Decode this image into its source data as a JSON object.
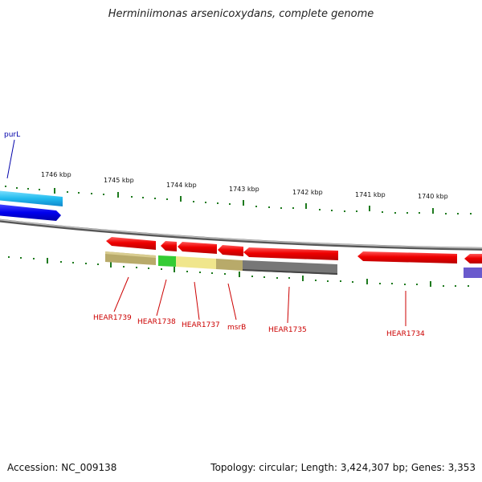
{
  "title": "Herminiimonas arsenicoxydans, complete genome",
  "ticks": [
    "1746 kbp",
    "1745 kbp",
    "1744 kbp",
    "1743 kbp",
    "1742 kbp",
    "1741 kbp",
    "1740 kbp"
  ],
  "genes": [
    {
      "label": "purL",
      "color": "#0000aa"
    },
    {
      "label": "HEAR1739",
      "color": "#cc0000"
    },
    {
      "label": "HEAR1738",
      "color": "#cc0000"
    },
    {
      "label": "HEAR1737",
      "color": "#cc0000"
    },
    {
      "label": "msrB",
      "color": "#cc0000"
    },
    {
      "label": "HEAR1735",
      "color": "#cc0000"
    },
    {
      "label": "HEAR1734",
      "color": "#cc0000"
    }
  ],
  "footer": {
    "accession_label": "Accession:",
    "accession": "NC_009138",
    "topology_label": "Topology:",
    "topology": "circular",
    "length_label": "Length:",
    "length": "3,424,307 bp",
    "genes_label": "Genes:",
    "genes_count": "3,353"
  },
  "colors": {
    "forward_gene": "#ee0000",
    "reverse_gene": "#0000ee",
    "cyan_gene": "#22bbee",
    "backbone": "#888888",
    "tick": "#228822",
    "label_line": "#cc0000"
  }
}
